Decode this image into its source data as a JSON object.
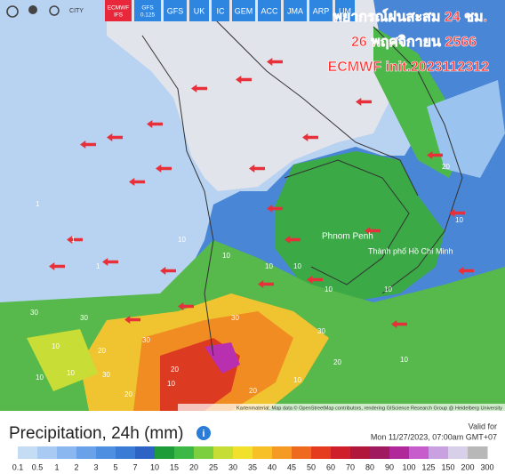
{
  "toolbar": {
    "city_toggle": "CITY",
    "models": [
      "ECMWF IFS",
      "GFS 0.125",
      "GFS",
      "UK",
      "IC",
      "GEM",
      "ACC",
      "JMA",
      "ARP",
      "UM"
    ],
    "active_model": "ECMWF IFS"
  },
  "overlay_title": [
    "พยากรณ์ฝนสะสม 24 ชม.",
    "26 พฤศจิกายน 2566",
    "ECMWF init.2023112312"
  ],
  "map": {
    "cities": [
      "Phnom Penh",
      "Thành phố Hồ Chí Minh"
    ],
    "contour_labels": [
      "20",
      "10",
      "10",
      "10",
      "10",
      "10",
      "1",
      "1",
      "1",
      "10",
      "30",
      "30",
      "30",
      "20",
      "10",
      "10",
      "10",
      "20",
      "10",
      "30",
      "20",
      "30",
      "10",
      "30",
      "10",
      "20",
      "10",
      "20"
    ],
    "attribution": "Kartenmaterial: Map data © OpenStreetMap contributors, rendering GIScience Research Group @ Heidelberg University"
  },
  "legend": {
    "title": "Precipitation, 24h (mm)",
    "info": "i",
    "valid_label": "Valid for",
    "valid_time": "Mon 11/27/2023, 07:00am GMT+07",
    "values": [
      0.1,
      0.5,
      1,
      2,
      3,
      5,
      7,
      10,
      15,
      20,
      25,
      30,
      35,
      40,
      45,
      50,
      60,
      70,
      80,
      90,
      100,
      125,
      150,
      200,
      300
    ],
    "colors": [
      "#c5dcf5",
      "#a9cbf3",
      "#8ab7ef",
      "#6aa2ea",
      "#4f8fe2",
      "#3a7bd6",
      "#2c63c4",
      "#1e9c3a",
      "#3bb845",
      "#7ccf3f",
      "#c5dd35",
      "#f2e12c",
      "#f7c026",
      "#f59a22",
      "#ee6a1f",
      "#e53b1e",
      "#cf1f2a",
      "#b0173a",
      "#a01a60",
      "#b0289a",
      "#c75ccd",
      "#c9a0e0",
      "#d8d0e8",
      "#b8b8b8"
    ]
  }
}
